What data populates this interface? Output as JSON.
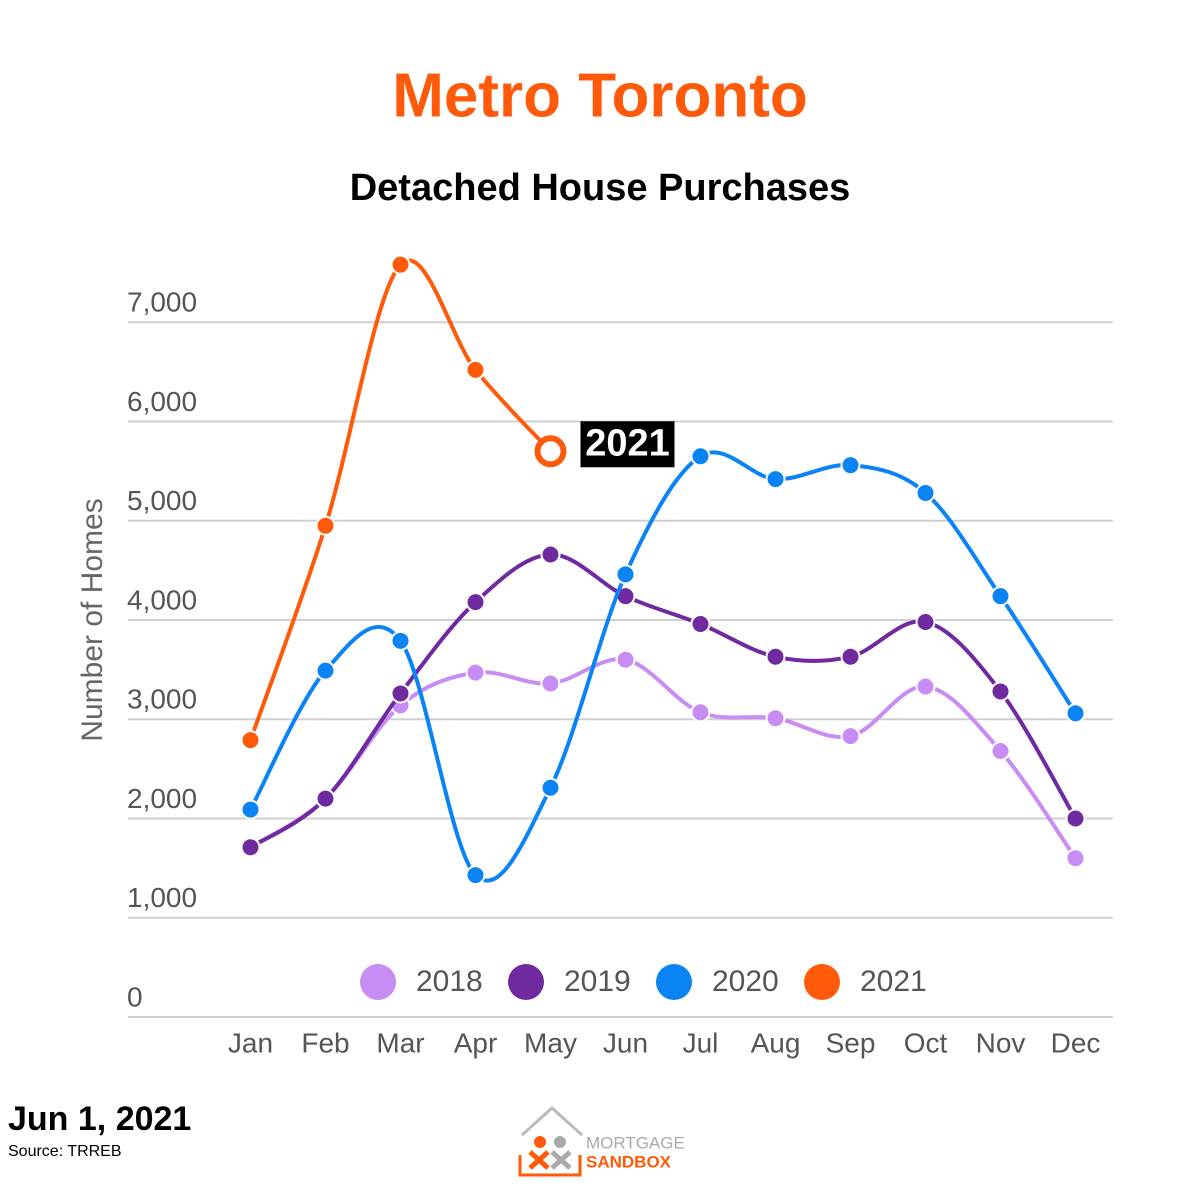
{
  "chart_data": {
    "type": "line",
    "title": "Metro Toronto",
    "subtitle": "Detached House Purchases",
    "y_label": "Number of Homes",
    "categories": [
      "Jan",
      "Feb",
      "Mar",
      "Apr",
      "May",
      "Jun",
      "Jul",
      "Aug",
      "Sep",
      "Oct",
      "Nov",
      "Dec"
    ],
    "series": [
      {
        "name": "2018",
        "color": "#c88cf5",
        "values": [
          1710,
          2200,
          3140,
          3470,
          3360,
          3600,
          3070,
          3010,
          2830,
          3330,
          2680,
          1600
        ]
      },
      {
        "name": "2019",
        "color": "#6f2a9f",
        "values": [
          1710,
          2200,
          3260,
          4180,
          4660,
          4240,
          3960,
          3630,
          3630,
          3980,
          3280,
          2000
        ]
      },
      {
        "name": "2020",
        "color": "#0a84f5",
        "values": [
          2090,
          3490,
          3790,
          1430,
          2310,
          4460,
          5650,
          5420,
          5560,
          5280,
          4240,
          3060
        ]
      },
      {
        "name": "2021",
        "color": "#ff5a0a",
        "values": [
          2790,
          4950,
          7580,
          6520,
          5700,
          null,
          null,
          null,
          null,
          null,
          null,
          null
        ]
      }
    ],
    "ylim": [
      0,
      8000
    ],
    "yticks": [
      0,
      {
        "value": 1000,
        "label": "1,000"
      },
      {
        "value": 2000,
        "label": "2,000"
      },
      {
        "value": 3000,
        "label": "3,000"
      },
      {
        "value": 4000,
        "label": "4,000"
      },
      {
        "value": 5000,
        "label": "5,000"
      },
      {
        "value": 6000,
        "label": "6,000"
      },
      {
        "value": 7000,
        "label": "7,000"
      }
    ],
    "grid": true,
    "legend": "bottom",
    "date": "Jun 1, 2021",
    "source": "Source: TRREB",
    "logo_top": "MORTGAGE",
    "logo_bottom": "SANDBOX"
  }
}
